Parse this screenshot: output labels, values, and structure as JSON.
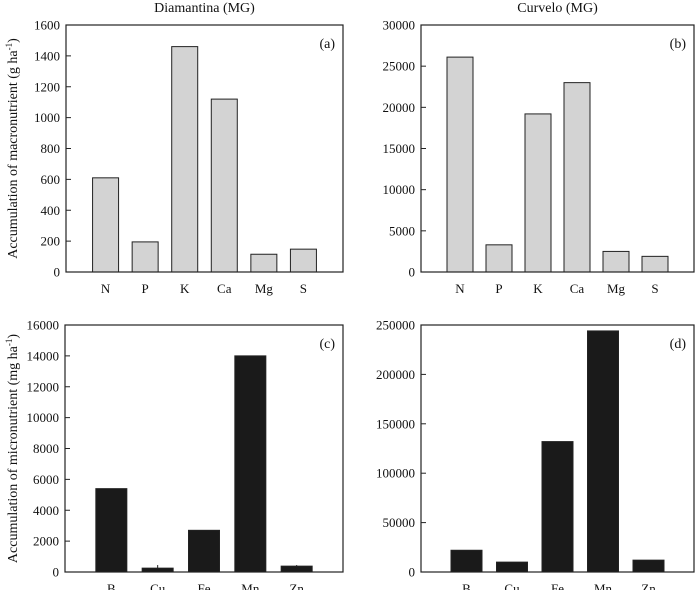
{
  "chart_data": [
    {
      "type": "bar",
      "panel_label": "(a)",
      "title": "Diamantina (MG)",
      "ylabel": "Accumulation of macronutrient (g ha",
      "ylabel_sup": "-1",
      "ylabel_end": ")",
      "categories": [
        "N",
        "P",
        "K",
        "Ca",
        "Mg",
        "S"
      ],
      "values": [
        610,
        195,
        1460,
        1120,
        115,
        148
      ],
      "ylim": [
        0,
        1600
      ],
      "yticks": [
        0,
        200,
        400,
        600,
        800,
        1000,
        1200,
        1400,
        1600
      ],
      "bar_color": "#d3d3d3"
    },
    {
      "type": "bar",
      "panel_label": "(b)",
      "title": "Curvelo (MG)",
      "categories": [
        "N",
        "P",
        "K",
        "Ca",
        "Mg",
        "S"
      ],
      "values": [
        26100,
        3300,
        19200,
        23000,
        2500,
        1900
      ],
      "ylim": [
        0,
        30000
      ],
      "yticks": [
        0,
        5000,
        10000,
        15000,
        20000,
        25000,
        30000
      ],
      "bar_color": "#d3d3d3"
    },
    {
      "type": "bar",
      "panel_label": "(c)",
      "ylabel": "Accumulation of micronutrient (mg ha",
      "ylabel_sup": "-1",
      "ylabel_end": ")",
      "categories": [
        "B",
        "Cu",
        "Fe",
        "Mn",
        "Zn"
      ],
      "values": [
        5400,
        250,
        2700,
        14000,
        380
      ],
      "error_tops": [
        null,
        450,
        null,
        null,
        450
      ],
      "ylim": [
        0,
        16000
      ],
      "yticks": [
        0,
        2000,
        4000,
        6000,
        8000,
        10000,
        12000,
        14000,
        16000
      ],
      "bar_color": "#1a1a1a"
    },
    {
      "type": "bar",
      "panel_label": "(d)",
      "categories": [
        "B",
        "Cu",
        "Fe",
        "Mn",
        "Zn"
      ],
      "values": [
        22000,
        10000,
        132000,
        244000,
        12000
      ],
      "ylim": [
        0,
        250000
      ],
      "yticks": [
        0,
        50000,
        100000,
        150000,
        200000,
        250000
      ],
      "bar_color": "#1a1a1a"
    }
  ]
}
